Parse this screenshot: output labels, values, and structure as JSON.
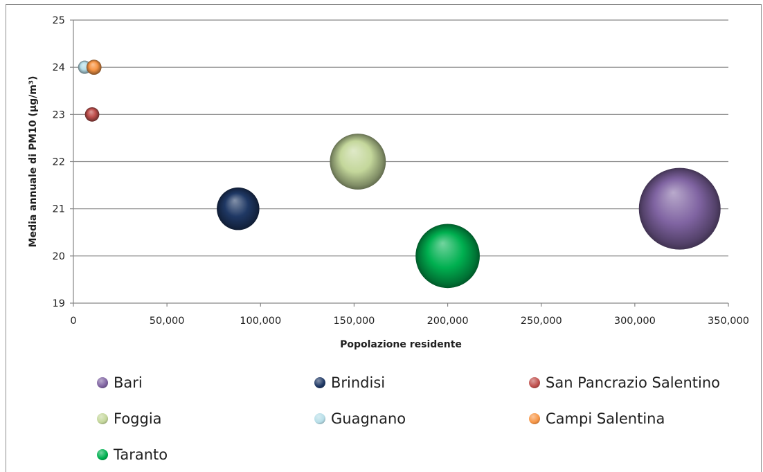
{
  "chart_data": {
    "type": "bubble",
    "title": "",
    "xlabel": "Popolazione residente",
    "ylabel": "Media annuale di PM10 (µg/m³)",
    "xlim": [
      0,
      350000
    ],
    "ylim": [
      19,
      25
    ],
    "x_ticks": [
      "0",
      "50,000",
      "100,000",
      "150,000",
      "200,000",
      "250,000",
      "300,000",
      "350,000"
    ],
    "y_ticks": [
      "19",
      "20",
      "21",
      "22",
      "23",
      "24",
      "25"
    ],
    "grid": true,
    "legend_position": "bottom",
    "series": [
      {
        "name": "Bari",
        "x": 324000,
        "y": 21,
        "size": 324000,
        "color": "#8064a2"
      },
      {
        "name": "Brindisi",
        "x": 88000,
        "y": 21,
        "size": 88000,
        "color": "#1f3864"
      },
      {
        "name": "San Pancrazio Salentino",
        "x": 10000,
        "y": 23,
        "size": 10000,
        "color": "#c0504d"
      },
      {
        "name": "Foggia",
        "x": 152000,
        "y": 22,
        "size": 152000,
        "color": "#c4d79b"
      },
      {
        "name": "Guagnano",
        "x": 6000,
        "y": 24,
        "size": 6000,
        "color": "#b7dee8"
      },
      {
        "name": "Campi Salentina",
        "x": 11000,
        "y": 24,
        "size": 11000,
        "color": "#f79646"
      },
      {
        "name": "Taranto",
        "x": 200000,
        "y": 20,
        "size": 200000,
        "color": "#00b050"
      }
    ]
  }
}
